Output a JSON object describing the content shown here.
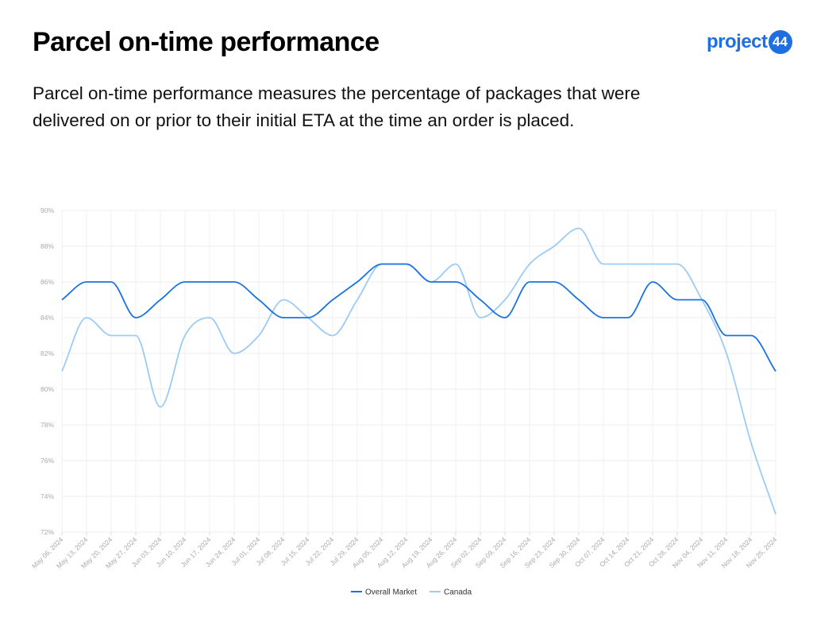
{
  "header": {
    "title": "Parcel on-time performance",
    "description": "Parcel on-time performance measures the percentage of packages that were delivered on or prior to their initial ETA at the time an order is placed."
  },
  "logo": {
    "text": "project",
    "badge": "44",
    "color": "#1f6fe0"
  },
  "chart_data": {
    "type": "line",
    "title": "",
    "xlabel": "",
    "ylabel": "",
    "ylim": [
      72,
      90
    ],
    "y_ticks": [
      90,
      88,
      86,
      84,
      82,
      80,
      78,
      76,
      74,
      72
    ],
    "y_tick_suffix": "%",
    "grid": true,
    "legend_position": "bottom-center",
    "categories": [
      "May 06, 2024",
      "May 13, 2024",
      "May 20, 2024",
      "May 27, 2024",
      "Jun 03, 2024",
      "Jun 10, 2024",
      "Jun 17, 2024",
      "Jun 24, 2024",
      "Jul 01, 2024",
      "Jul 08, 2024",
      "Jul 15, 2024",
      "Jul 22, 2024",
      "Jul 29, 2024",
      "Aug 05, 2024",
      "Aug 12, 2024",
      "Aug 19, 2024",
      "Aug 26, 2024",
      "Sep 02, 2024",
      "Sep 09, 2024",
      "Sep 16, 2024",
      "Sep 23, 2024",
      "Sep 30, 2024",
      "Oct 07, 2024",
      "Oct 14, 2024",
      "Oct 21, 2024",
      "Oct 28, 2024",
      "Nov 04, 2024",
      "Nov 11, 2024",
      "Nov 18, 2024",
      "Nov 25, 2024"
    ],
    "series": [
      {
        "name": "Overall Market",
        "color": "#1a73e0",
        "values": [
          85,
          86,
          86,
          84,
          85,
          86,
          86,
          86,
          85,
          84,
          84,
          85,
          86,
          87,
          87,
          86,
          86,
          85,
          84,
          86,
          86,
          85,
          84,
          84,
          86,
          85,
          85,
          83,
          83,
          81
        ]
      },
      {
        "name": "Canada",
        "color": "#9ccbf5",
        "values": [
          81,
          84,
          83,
          83,
          79,
          83,
          84,
          82,
          83,
          85,
          84,
          83,
          85,
          87,
          87,
          86,
          87,
          84,
          85,
          87,
          88,
          89,
          87,
          87,
          87,
          87,
          85,
          82,
          77,
          73
        ]
      }
    ]
  }
}
